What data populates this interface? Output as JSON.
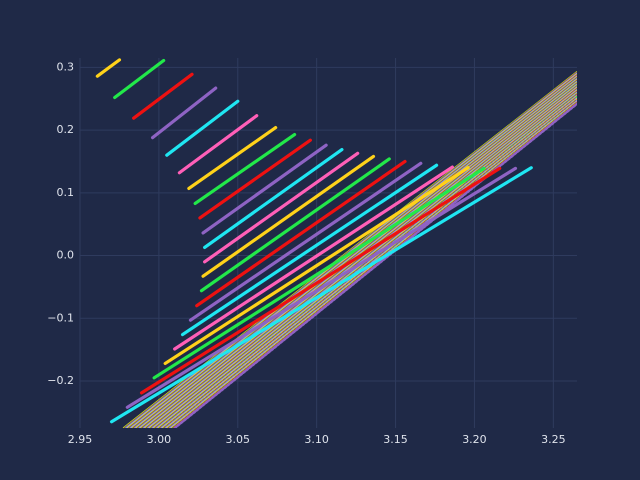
{
  "chart_data": {
    "type": "line",
    "title": "",
    "xlabel": "",
    "ylabel": "",
    "xlim": [
      2.95,
      3.265
    ],
    "ylim": [
      -0.275,
      0.315
    ],
    "x_ticks": [
      "2.95",
      "3.00",
      "3.05",
      "3.10",
      "3.15",
      "3.20",
      "3.25"
    ],
    "y_ticks": [
      "−0.2",
      "−0.1",
      "0.0",
      "0.1",
      "0.2",
      "0.3"
    ],
    "x_tick_values": [
      2.95,
      3.0,
      3.05,
      3.1,
      3.15,
      3.2,
      3.25
    ],
    "y_tick_values": [
      -0.2,
      -0.1,
      0.0,
      0.1,
      0.2,
      0.3
    ],
    "grid": true,
    "legend": "none",
    "palette": [
      "#ffd21a",
      "#22e84a",
      "#ee1111",
      "#8e63c4",
      "#1fe6f2",
      "#ff5fb8"
    ],
    "background": "#1f2947",
    "gridline_color": "#2f3b5e",
    "series": [
      {
        "x": [
          2.961,
          2.975
        ],
        "y": [
          0.286,
          0.312
        ]
      },
      {
        "x": [
          2.972,
          3.003
        ],
        "y": [
          0.252,
          0.311
        ]
      },
      {
        "x": [
          2.984,
          3.021
        ],
        "y": [
          0.219,
          0.289
        ]
      },
      {
        "x": [
          2.996,
          3.036
        ],
        "y": [
          0.188,
          0.267
        ]
      },
      {
        "x": [
          3.005,
          3.05
        ],
        "y": [
          0.16,
          0.246
        ]
      },
      {
        "x": [
          3.013,
          3.062
        ],
        "y": [
          0.132,
          0.223
        ]
      },
      {
        "x": [
          3.019,
          3.074
        ],
        "y": [
          0.107,
          0.204
        ]
      },
      {
        "x": [
          3.023,
          3.086
        ],
        "y": [
          0.083,
          0.193
        ]
      },
      {
        "x": [
          3.026,
          3.096
        ],
        "y": [
          0.06,
          0.184
        ]
      },
      {
        "x": [
          3.028,
          3.106
        ],
        "y": [
          0.036,
          0.176
        ]
      },
      {
        "x": [
          3.029,
          3.116
        ],
        "y": [
          0.013,
          0.169
        ]
      },
      {
        "x": [
          3.029,
          3.126
        ],
        "y": [
          -0.01,
          0.163
        ]
      },
      {
        "x": [
          3.028,
          3.136
        ],
        "y": [
          -0.033,
          0.158
        ]
      },
      {
        "x": [
          3.027,
          3.146
        ],
        "y": [
          -0.056,
          0.154
        ]
      },
      {
        "x": [
          3.024,
          3.156
        ],
        "y": [
          -0.08,
          0.15
        ]
      },
      {
        "x": [
          3.02,
          3.166
        ],
        "y": [
          -0.103,
          0.147
        ]
      },
      {
        "x": [
          3.015,
          3.176
        ],
        "y": [
          -0.126,
          0.144
        ]
      },
      {
        "x": [
          3.01,
          3.186
        ],
        "y": [
          -0.149,
          0.141
        ]
      },
      {
        "x": [
          3.004,
          3.196
        ],
        "y": [
          -0.172,
          0.14
        ]
      },
      {
        "x": [
          2.997,
          3.206
        ],
        "y": [
          -0.195,
          0.139
        ]
      },
      {
        "x": [
          2.989,
          3.216
        ],
        "y": [
          -0.219,
          0.139
        ]
      },
      {
        "x": [
          2.98,
          3.226
        ],
        "y": [
          -0.242,
          0.139
        ]
      },
      {
        "x": [
          2.97,
          3.236
        ],
        "y": [
          -0.265,
          0.14
        ]
      }
    ],
    "band": {
      "count": 70,
      "start": {
        "x": [
          2.978,
          3.265
        ],
        "y": [
          -0.275,
          0.292
        ]
      },
      "end": {
        "x": [
          3.01,
          3.265
        ],
        "y": [
          -0.275,
          0.242
        ]
      }
    }
  }
}
